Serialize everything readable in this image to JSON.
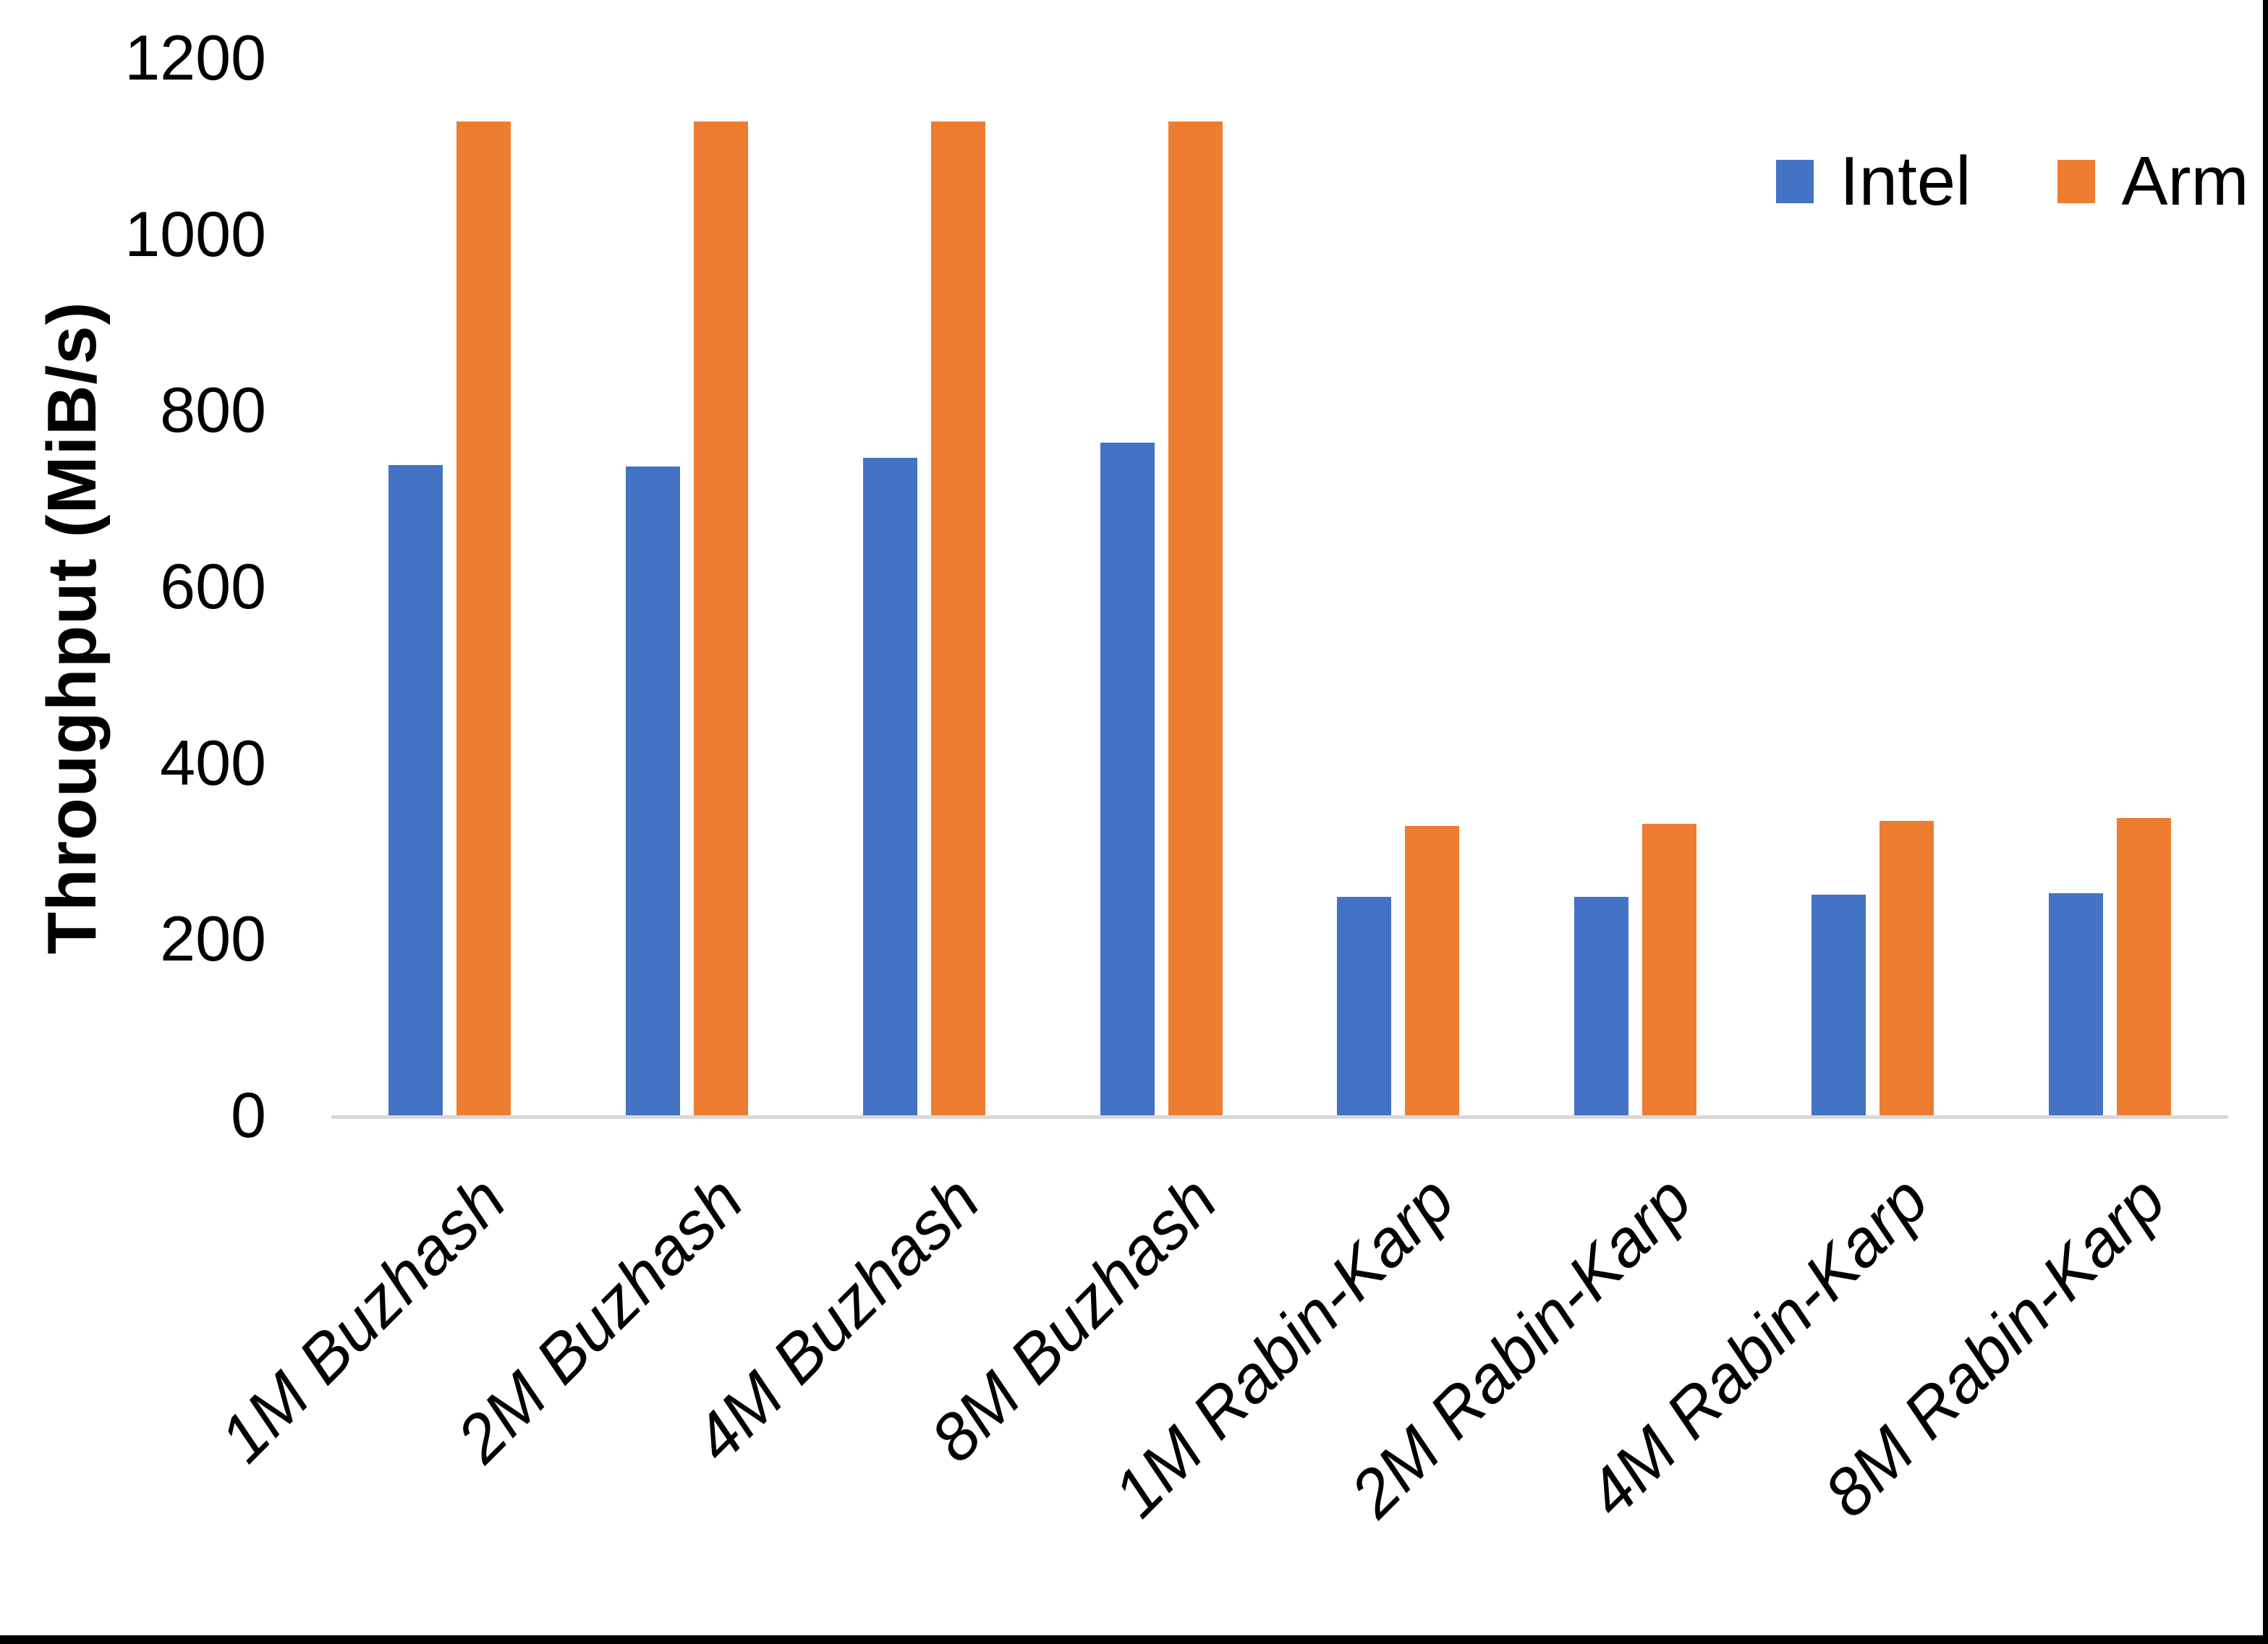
{
  "chart_data": {
    "type": "bar",
    "title": "",
    "xlabel": "",
    "ylabel": "Throughput (MiB/s)",
    "ylim": [
      0,
      1200
    ],
    "yticks": [
      0,
      200,
      400,
      600,
      800,
      1000,
      1200
    ],
    "grid": false,
    "legend_position": "top-right",
    "axis_line_color": "#d9d9d9",
    "text_color": "#000000",
    "categories": [
      "1M Buzhash",
      "2M Buzhash",
      "4M Buzhash",
      "8M Buzhash",
      "1M Rabin-Karp",
      "2M Rabin-Karp",
      "4M Rabin-Karp",
      "8M Rabin-Karp"
    ],
    "series": [
      {
        "name": "Intel",
        "color": "#4472C4",
        "values": [
          738,
          736,
          746,
          763,
          248,
          248,
          250,
          252
        ]
      },
      {
        "name": "Arm",
        "color": "#ED7D31",
        "values": [
          1128,
          1128,
          1128,
          1128,
          328,
          331,
          334,
          337
        ]
      }
    ]
  }
}
